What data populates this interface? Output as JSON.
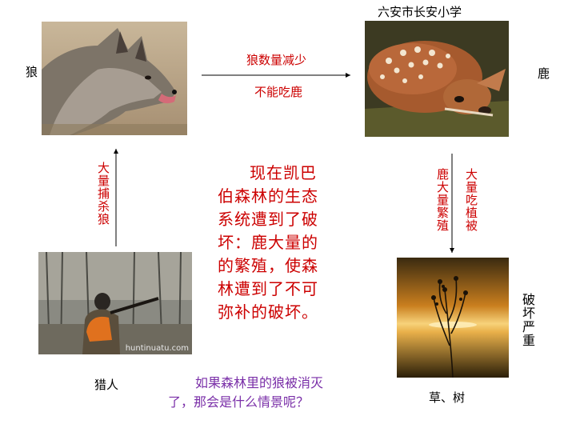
{
  "header": {
    "school": "六安市长安小学"
  },
  "nodes": {
    "wolf": {
      "label": "狼",
      "icon": "wolf-photo"
    },
    "deer": {
      "label": "鹿",
      "icon": "deer-photo"
    },
    "hunter": {
      "label": "猎人",
      "icon": "hunter-photo",
      "watermark": "huntinuatu.com"
    },
    "plants": {
      "label": "草、树",
      "icon": "plants-photo"
    }
  },
  "arrows": {
    "wolf_to_deer": {
      "top": "狼数量减少",
      "bottom": "不能吃鹿"
    },
    "deer_to_plants": {
      "col1": "大量吃植被",
      "col2": "鹿大量繁殖"
    },
    "hunter_to_wolf": {
      "text": "大量捕杀狼"
    },
    "plants_side": {
      "text": "破坏严重"
    }
  },
  "main_text": {
    "lines": [
      "现在凯巴",
      "伯森林的生态",
      "系统遭到了破",
      "坏：鹿大量的",
      "的繁殖，使森",
      "林遭到了不可",
      "弥补的破坏。"
    ]
  },
  "question": {
    "line1": "如果森林里的狼被消灭",
    "line2": "了，那会是什么情景呢？"
  },
  "colors": {
    "red_text": "#cc0000",
    "purple_text": "#7a2fa8",
    "arrow": "#000000"
  }
}
